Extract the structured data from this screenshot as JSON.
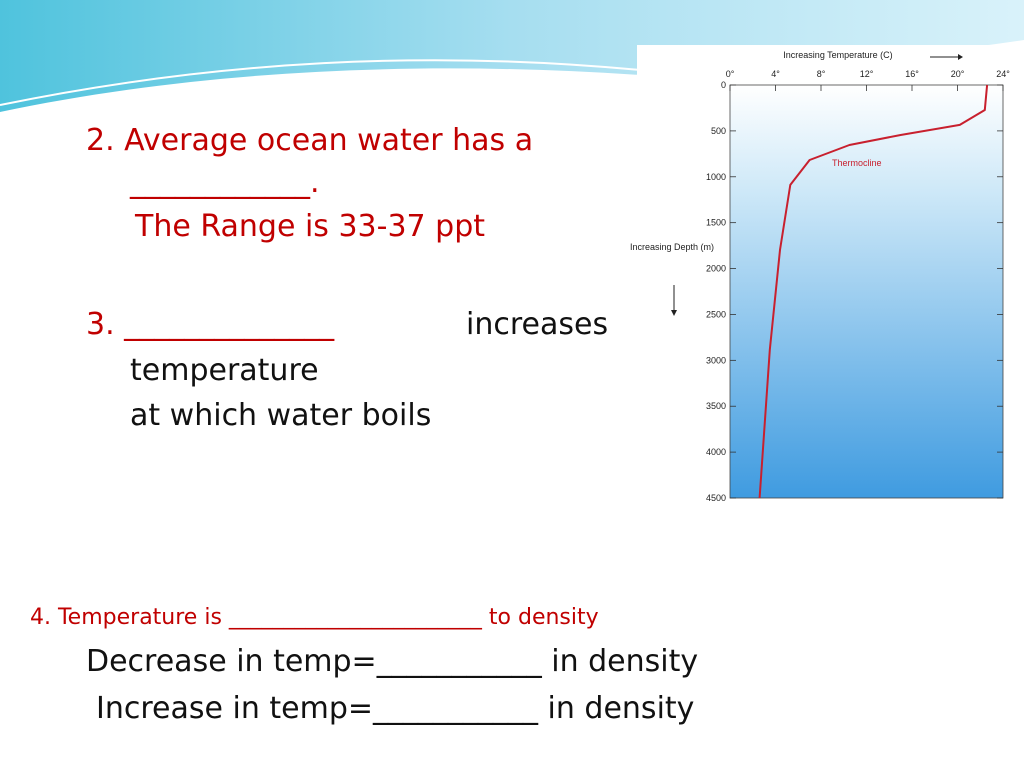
{
  "slide": {
    "item2": {
      "line1": "2. Average ocean water has a",
      "line2": "____________.",
      "line3": "The Range is 33-37 ppt"
    },
    "item3": {
      "line1a": "3. ______________",
      "line1b": "increases",
      "line2": "temperature",
      "line3": "at which water boils"
    },
    "item4": {
      "line1": "4. Temperature is _______________________ to density",
      "line2": "Decrease in temp=___________ in density",
      "line3": "Increase in temp=___________ in density"
    }
  },
  "chart_data": {
    "type": "line",
    "x_label": "Increasing Temperature (C)",
    "y_label": "Increasing Depth (m)",
    "annotation": "Thermocline",
    "x": [
      22.6,
      22.4,
      20.2,
      15,
      10.5,
      7,
      5.3,
      4.4,
      3.5,
      2.6
    ],
    "series": [
      {
        "color": "#c8202e",
        "values": [
          0,
          272,
          435,
          545,
          654,
          817,
          1089,
          1797,
          2886,
          4500
        ]
      }
    ],
    "xlim": [
      0,
      24
    ],
    "xticks": [
      {
        "value": 0,
        "label": "0°"
      },
      {
        "value": 4,
        "label": "4°"
      },
      {
        "value": 8,
        "label": "8°"
      },
      {
        "value": 12,
        "label": "12°"
      },
      {
        "value": 16,
        "label": "16°"
      },
      {
        "value": 20,
        "label": "20°"
      },
      {
        "value": 24,
        "label": "24°"
      }
    ],
    "ylim": [
      0,
      4500
    ],
    "y_inverted": true,
    "yticks": [
      0,
      500,
      1000,
      1500,
      2000,
      2500,
      3000,
      3500,
      4000,
      4500
    ]
  }
}
